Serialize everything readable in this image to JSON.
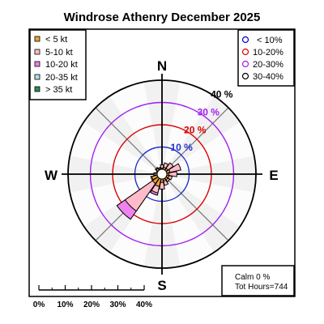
{
  "chart_data": {
    "type": "windrose",
    "title": "Windrose  Athenry December 2025",
    "compass": {
      "north": "N",
      "east": "E",
      "south": "S",
      "west": "W"
    },
    "directions": [
      0,
      22.5,
      45,
      67.5,
      90,
      112.5,
      135,
      157.5,
      180,
      202.5,
      225,
      247.5,
      270,
      292.5,
      315,
      337.5
    ],
    "speed_bins": [
      {
        "label": "< 5  kt",
        "color": "#e8a33a"
      },
      {
        "label": "5-10 kt",
        "color": "#ffbcc8"
      },
      {
        "label": "10-20 kt",
        "color": "#ee82ee"
      },
      {
        "label": "20-35 kt",
        "color": "#b0e0e6"
      },
      {
        "label": "> 35 kt",
        "color": "#2e8b57"
      }
    ],
    "ring_legend": [
      {
        "label": "< 10%",
        "color": "#0000cc"
      },
      {
        "label": "10-20%",
        "color": "#dd0000"
      },
      {
        "label": "20-30%",
        "color": "#a020f0"
      },
      {
        "label": "30-40%",
        "color": "#000000"
      }
    ],
    "rings": [
      {
        "value": 10,
        "label": "10 %",
        "color": "#2233cc"
      },
      {
        "value": 20,
        "label": "20 %",
        "color": "#dd0000"
      },
      {
        "value": 30,
        "label": "30 %",
        "color": "#a020f0"
      },
      {
        "value": 40,
        "label": "40 %",
        "color": "#000000"
      }
    ],
    "max_percent": 40,
    "frequencies": [
      [
        0.5,
        1.5,
        0,
        0,
        0
      ],
      [
        1,
        2,
        0,
        0,
        0
      ],
      [
        1,
        3,
        0,
        0,
        0
      ],
      [
        1.5,
        5,
        0,
        0,
        0
      ],
      [
        1,
        3.5,
        0,
        0,
        0
      ],
      [
        1,
        1.5,
        0,
        0,
        0
      ],
      [
        1,
        1,
        0,
        0,
        0
      ],
      [
        1,
        2,
        0,
        0,
        0
      ],
      [
        1.5,
        3,
        0,
        0,
        0
      ],
      [
        3.5,
        3,
        1,
        0,
        0
      ],
      [
        3,
        15,
        4.5,
        0,
        0
      ],
      [
        2.5,
        0.5,
        0,
        0,
        0
      ],
      [
        1,
        0.5,
        0,
        0,
        0
      ],
      [
        0.5,
        0,
        0,
        0,
        0
      ],
      [
        1,
        0.5,
        0,
        0,
        0
      ],
      [
        0.5,
        0.5,
        0,
        0,
        0
      ]
    ],
    "scale_labels": [
      "0%",
      "10%",
      "20%",
      "30%",
      "40%"
    ],
    "calm_text": "Calm 0 %",
    "hours_text": "Tot Hours=744"
  }
}
